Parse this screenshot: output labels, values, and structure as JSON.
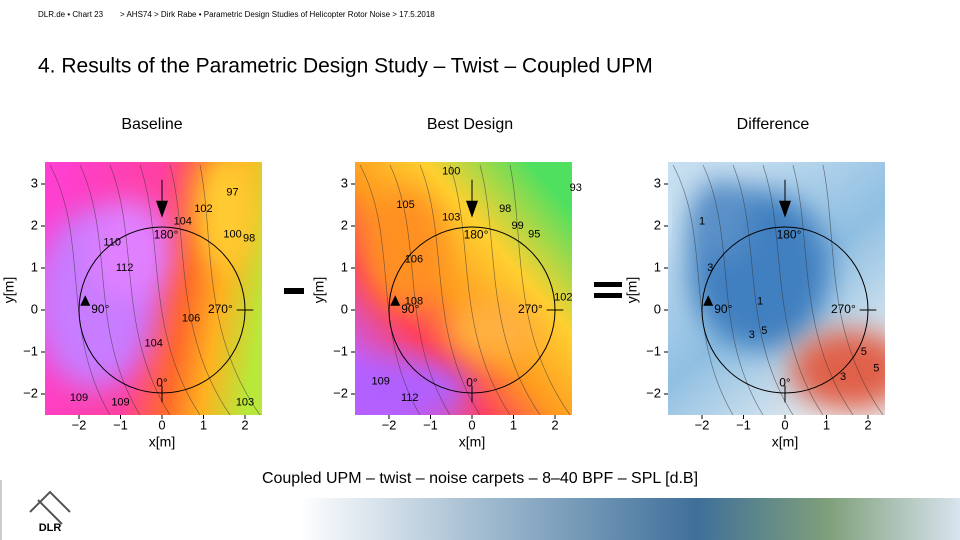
{
  "header": {
    "left": "DLR.de • Chart 23",
    "right": "> AHS74 > Dirk Rabe • Parametric Design Studies of Helicopter Rotor Noise > 17.5.2018"
  },
  "title": "4. Results of the Parametric Design Study – Twist – Coupled UPM",
  "panels": [
    {
      "title": "Baseline",
      "x_label": "x[m]",
      "y_label": "y[m]",
      "x_ticks": [
        "−2",
        "−1",
        "0",
        "1",
        "2"
      ],
      "y_ticks": [
        "−2",
        "−1",
        "0",
        "1",
        "2",
        "3"
      ],
      "azimuth_labels": [
        "180°",
        "90°",
        "270°",
        "0°"
      ],
      "contour_labels": [
        "97",
        "102",
        "100",
        "98",
        "104",
        "110",
        "112",
        "106",
        "104",
        "109",
        "109",
        "103"
      ]
    },
    {
      "title": "Best Design",
      "x_label": "x[m]",
      "y_label": "y[m]",
      "x_ticks": [
        "−2",
        "−1",
        "0",
        "1",
        "2"
      ],
      "y_ticks": [
        "−2",
        "−1",
        "0",
        "1",
        "2",
        "3"
      ],
      "azimuth_labels": [
        "180°",
        "90°",
        "270°",
        "0°"
      ],
      "contour_labels": [
        "100",
        "93",
        "105",
        "103",
        "98",
        "99",
        "95",
        "106",
        "108",
        "102",
        "109",
        "112"
      ]
    },
    {
      "title": "Difference",
      "x_label": "x[m]",
      "y_label": "y[m]",
      "x_ticks": [
        "−2",
        "−1",
        "0",
        "1",
        "2"
      ],
      "y_ticks": [
        "−2",
        "−1",
        "0",
        "1",
        "2",
        "3"
      ],
      "azimuth_labels": [
        "180°",
        "90°",
        "270°",
        "0°"
      ],
      "contour_labels": [
        "1",
        "3",
        "1",
        "5",
        "3",
        "5",
        "3",
        "5"
      ]
    }
  ],
  "caption": "Coupled UPM – twist – noise carpets – 8–40 BPF – SPL [d.B]",
  "logo": "DLR"
}
